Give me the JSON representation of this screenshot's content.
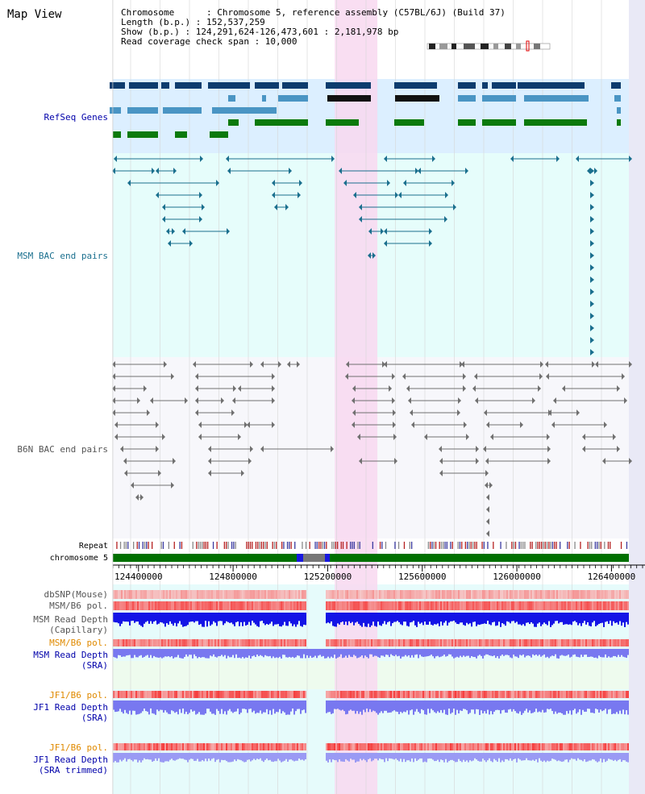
{
  "header": {
    "title": "Map View",
    "info_lines": [
      "Chromosome      : Chromosome 5, reference assembly (C57BL/6J) (Build 37)",
      "Length (b.p.) : 152,537,259",
      "Show (b.p.) : 124,291,624-126,473,601 : 2,181,978 bp",
      "Read coverage check span : 10,000"
    ]
  },
  "view": {
    "start": 124291624,
    "end": 126473601,
    "highlight_start": 125230000,
    "highlight_end": 125410000
  },
  "tracks": {
    "refseq_label": "RefSeq Genes",
    "msm_bac_label": "MSM BAC end pairs",
    "b6n_bac_label": "B6N BAC end pairs",
    "repeat_label": "Repeat",
    "chromosome_label": "chromosome 5",
    "ruler_ticks": [
      "124400000",
      "124800000",
      "125200000",
      "125600000",
      "126000000",
      "126400000"
    ],
    "dbsnp_label": "dbSNP(Mouse)",
    "msm_b6_pol_label": "MSM/B6 pol.",
    "msm_read_depth_cap_label": [
      "MSM Read Depth",
      "(Capillary)"
    ],
    "msm_b6_pol2_label": "MSM/B6 pol.",
    "msm_read_depth_sra_label": [
      "MSM Read Depth",
      "(SRA)"
    ],
    "jf1_b6_pol_label": "JF1/B6 pol.",
    "jf1_read_depth_sra_label": [
      "JF1 Read Depth",
      "(SRA)"
    ],
    "jf1_b6_pol2_label": "JF1/B6 pol.",
    "jf1_read_depth_trim_label": [
      "JF1 Read Depth",
      "(SRA trimmed)"
    ]
  },
  "colors": {
    "refseq_bg": "#dcefff",
    "msm_bg": "#e6fdfb",
    "b6n_bg": "#f7f7fb",
    "highlight": "#f8d8f0",
    "gene_navy": "#0d3c6e",
    "gene_steel": "#4a95c4",
    "gene_green": "#0c7a0c",
    "bac_teal": "#1a6f8e",
    "bac_gray": "#707070",
    "label_blue": "#0000aa",
    "label_teal": "#1a6f8e",
    "label_gray": "#555555",
    "label_orange": "#e08a00",
    "chromosome_green": "#007000",
    "read_depth_blue": "#1414e6",
    "read_depth_lavender": "#7878f0"
  }
}
